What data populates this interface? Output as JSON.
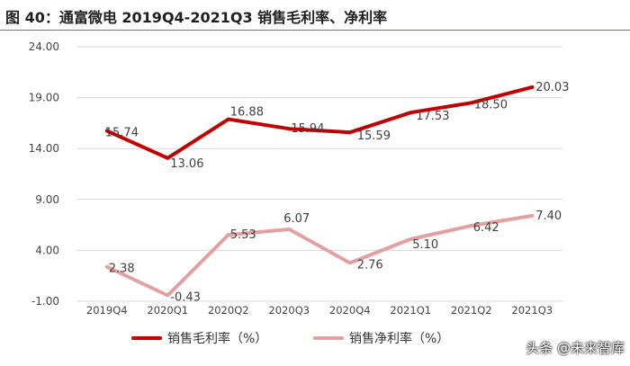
{
  "page": {
    "title": "图 40：通富微电 2019Q4-2021Q3 销售毛利率、净利率",
    "watermark": "头条 @未来智库"
  },
  "chart_data": {
    "type": "line",
    "title": "图 40：通富微电 2019Q4-2021Q3 销售毛利率、净利率",
    "xlabel": "",
    "ylabel": "",
    "x": [
      "2019Q4",
      "2020Q1",
      "2020Q2",
      "2020Q3",
      "2020Q4",
      "2021Q1",
      "2021Q2",
      "2021Q3"
    ],
    "ylim": [
      -1,
      24
    ],
    "yticks": [
      -1,
      4,
      9,
      14,
      19,
      24
    ],
    "ytick_labels": [
      "-1.00",
      "4.00",
      "9.00",
      "14.00",
      "19.00",
      "24.00"
    ],
    "grid": true,
    "legend": "bottom",
    "series": [
      {
        "name": "销售毛利率（%）",
        "color": "#c00000",
        "values": [
          15.74,
          13.06,
          16.88,
          15.94,
          15.59,
          17.53,
          18.5,
          20.03
        ],
        "labels": [
          "15.74",
          "13.06",
          "16.88",
          "15.94",
          "15.59",
          "17.53",
          "18.50",
          "20.03"
        ]
      },
      {
        "name": "销售净利率（%）",
        "color": "#e3a0a0",
        "values": [
          2.38,
          -0.43,
          5.53,
          6.07,
          2.76,
          5.1,
          6.42,
          7.4
        ],
        "labels": [
          "2.38",
          "-0.43",
          "5.53",
          "6.07",
          "2.76",
          "5.10",
          "6.42",
          "7.40"
        ]
      }
    ]
  }
}
